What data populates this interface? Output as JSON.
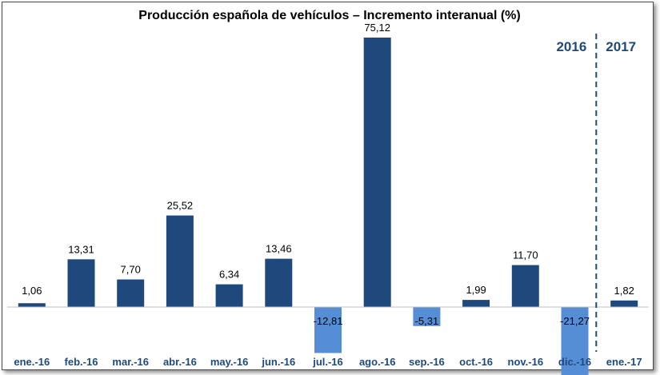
{
  "chart_data": {
    "type": "bar",
    "title": "Producción española de vehículos – Incremento interanual (%)",
    "categories": [
      "ene.-16",
      "feb.-16",
      "mar.-16",
      "abr.-16",
      "may.-16",
      "jun.-16",
      "jul.-16",
      "ago.-16",
      "sep.-16",
      "oct.-16",
      "nov.-16",
      "dic.-16",
      "ene.-17"
    ],
    "values": [
      1.06,
      13.31,
      7.7,
      25.52,
      6.34,
      13.46,
      -12.81,
      75.12,
      -5.31,
      1.99,
      11.7,
      -21.27,
      1.82
    ],
    "value_labels": [
      "1,06",
      "13,31",
      "7,70",
      "25,52",
      "6,34",
      "13,46",
      "-12,81",
      "75,12",
      "-5,31",
      "1,99",
      "11,70",
      "-21,27",
      "1,82"
    ],
    "xlabel": "",
    "ylabel": "",
    "ylim": [
      -21.27,
      75.12
    ],
    "grid": false,
    "legend": "none",
    "year_labels": [
      "2016",
      "2017"
    ],
    "year_divider_after_category": "dic.-16",
    "colors": {
      "positive": "#1F497D",
      "negative": "#558ED5",
      "axis_labels": "#1F497D",
      "divider": "#1F497D"
    }
  }
}
